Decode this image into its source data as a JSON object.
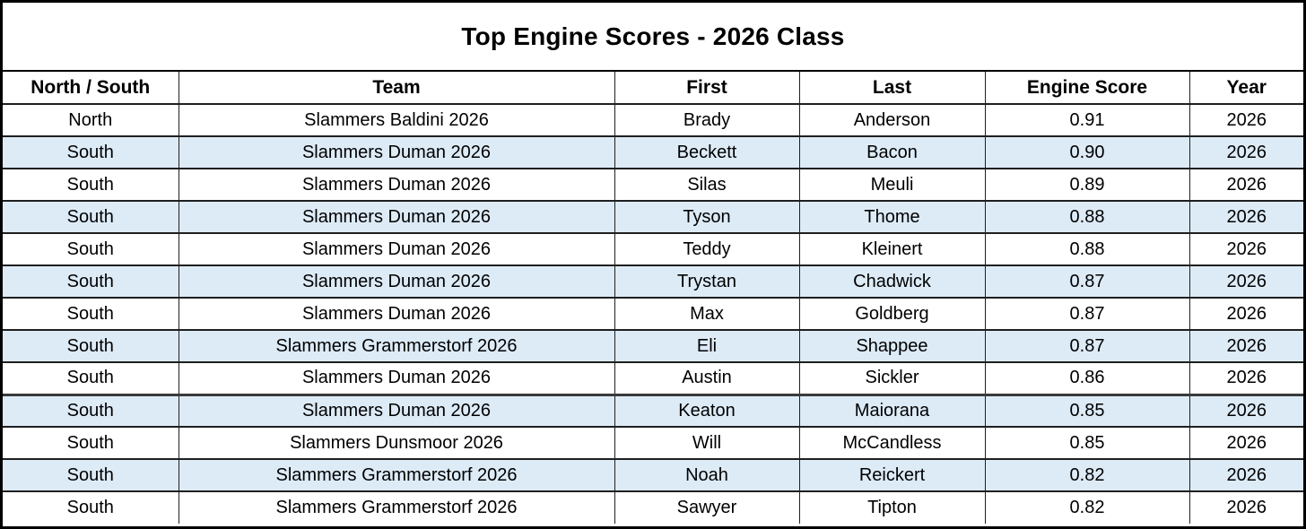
{
  "title": "Top Engine Scores - 2026 Class",
  "chart_data": {
    "type": "table",
    "title": "Top Engine Scores - 2026 Class",
    "columns": [
      "North / South",
      "Team",
      "First",
      "Last",
      "Engine Score",
      "Year"
    ],
    "rows": [
      [
        "North",
        "Slammers Baldini 2026",
        "Brady",
        "Anderson",
        "0.91",
        "2026"
      ],
      [
        "South",
        "Slammers Duman 2026",
        "Beckett",
        "Bacon",
        "0.90",
        "2026"
      ],
      [
        "South",
        "Slammers Duman 2026",
        "Silas",
        "Meuli",
        "0.89",
        "2026"
      ],
      [
        "South",
        "Slammers Duman 2026",
        "Tyson",
        "Thome",
        "0.88",
        "2026"
      ],
      [
        "South",
        "Slammers Duman 2026",
        "Teddy",
        "Kleinert",
        "0.88",
        "2026"
      ],
      [
        "South",
        "Slammers Duman 2026",
        "Trystan",
        "Chadwick",
        "0.87",
        "2026"
      ],
      [
        "South",
        "Slammers Duman 2026",
        "Max",
        "Goldberg",
        "0.87",
        "2026"
      ],
      [
        "South",
        "Slammers Grammerstorf 2026",
        "Eli",
        "Shappee",
        "0.87",
        "2026"
      ],
      [
        "South",
        "Slammers Duman 2026",
        "Austin",
        "Sickler",
        "0.86",
        "2026"
      ],
      [
        "South",
        "Slammers Duman 2026",
        "Keaton",
        "Maiorana",
        "0.85",
        "2026"
      ],
      [
        "South",
        "Slammers Dunsmoor 2026",
        "Will",
        "McCandless",
        "0.85",
        "2026"
      ],
      [
        "South",
        "Slammers Grammerstorf 2026",
        "Noah",
        "Reickert",
        "0.82",
        "2026"
      ],
      [
        "South",
        "Slammers Grammerstorf 2026",
        "Sawyer",
        "Tipton",
        "0.82",
        "2026"
      ]
    ],
    "banding": "alternate rows highlighted starting with second data row",
    "colors": {
      "band_fill": "#DDEBF7",
      "grid_line": "#1F1F1F",
      "background": "#FFFFFF",
      "text": "#000000"
    }
  }
}
